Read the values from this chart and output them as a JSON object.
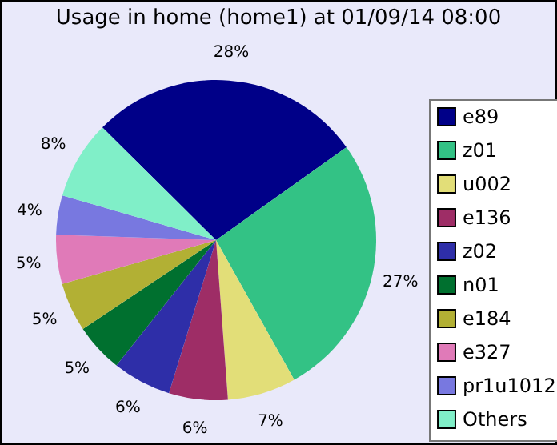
{
  "chart_data": {
    "type": "pie",
    "title": "Usage in home (home1) at 01/09/14 08:00",
    "categories": [
      "e89",
      "z01",
      "u002",
      "e136",
      "z02",
      "n01",
      "e184",
      "e327",
      "pr1u1012",
      "Others"
    ],
    "values": [
      28,
      27,
      7,
      6,
      6,
      5,
      5,
      5,
      4,
      8
    ],
    "value_labels": [
      "28%",
      "27%",
      "7%",
      "6%",
      "6%",
      "5%",
      "5%",
      "5%",
      "4%",
      "8%"
    ],
    "colors": [
      "#000088",
      "#33c285",
      "#e2de78",
      "#9e2d66",
      "#2e2ea8",
      "#00702f",
      "#b2b034",
      "#e07ab8",
      "#7878e0",
      "#80efc8"
    ],
    "legend": "right"
  }
}
